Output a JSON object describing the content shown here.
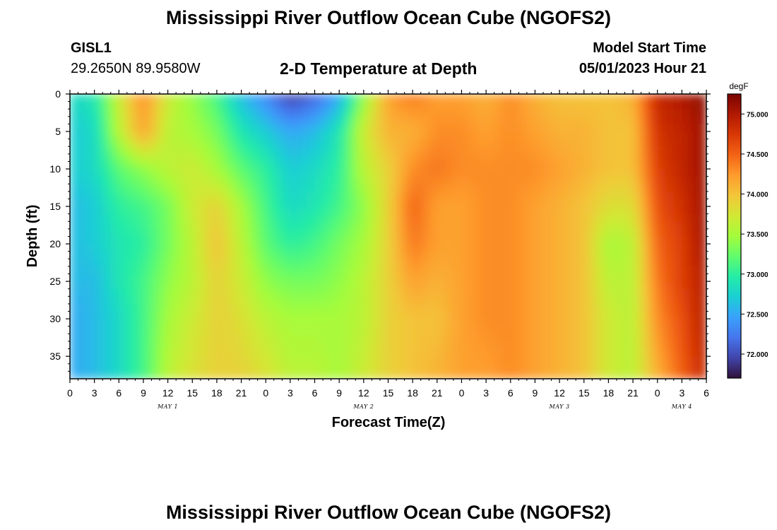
{
  "header": {
    "title_top": "Mississippi River Outflow Ocean Cube (NGOFS2)",
    "title_bottom": "Mississippi River Outflow Ocean Cube (NGOFS2)",
    "station_id": "GISL1",
    "station_coords": "29.2650N  89.9580W",
    "plot_subtitle": "2-D Temperature at Depth",
    "model_start_label": "Model Start Time",
    "model_start_value": "05/01/2023 Hour 21"
  },
  "chart_data": {
    "type": "heatmap",
    "title": "2-D Temperature at Depth",
    "xlabel": "Forecast Time(Z)",
    "ylabel": "Depth (ft)",
    "x_ticks": [
      "0",
      "3",
      "6",
      "9",
      "12",
      "15",
      "18",
      "21",
      "0",
      "3",
      "6",
      "9",
      "12",
      "15",
      "18",
      "21",
      "0",
      "3",
      "6",
      "9",
      "12",
      "15",
      "18",
      "21",
      "0",
      "3",
      "6"
    ],
    "x_range_hours": [
      0,
      78
    ],
    "day_labels": [
      {
        "label": "MAY 1",
        "hour": 12
      },
      {
        "label": "MAY 2",
        "hour": 36
      },
      {
        "label": "MAY 3",
        "hour": 60
      },
      {
        "label": "MAY 4",
        "hour": 75
      }
    ],
    "y_ticks": [
      "0",
      "5",
      "10",
      "15",
      "20",
      "25",
      "30",
      "35"
    ],
    "y_range_ft": [
      0,
      38
    ],
    "y_inverted": true,
    "colorbar": {
      "unit": "degF",
      "labels": [
        "75.000",
        "74.500",
        "74.000",
        "73.500",
        "73.000",
        "72.500",
        "72.000"
      ],
      "range": [
        71.7,
        75.25
      ],
      "colormap": [
        "#30123b",
        "#4145ab",
        "#4675ed",
        "#39a2fc",
        "#1bcfd4",
        "#24eca6",
        "#61fc6c",
        "#a4fc3b",
        "#d1e834",
        "#f3c63a",
        "#fe9b2d",
        "#f36315",
        "#d93806",
        "#b11901",
        "#7a0402"
      ]
    },
    "grid_hours": [
      0,
      3,
      6,
      9,
      12,
      15,
      18,
      21,
      24,
      27,
      30,
      33,
      36,
      39,
      42,
      45,
      48,
      51,
      54,
      57,
      60,
      63,
      66,
      69,
      72,
      75,
      78
    ],
    "grid_depths_ft": [
      0,
      5,
      10,
      15,
      20,
      25,
      30,
      38
    ],
    "values_degF": [
      [
        72.8,
        72.9,
        73.7,
        74.3,
        73.7,
        73.4,
        73.1,
        72.6,
        72.3,
        71.9,
        72.1,
        72.5,
        73.4,
        74.2,
        74.4,
        74.2,
        74.2,
        74.1,
        74.3,
        74.1,
        74.0,
        74.0,
        74.0,
        74.1,
        74.9,
        75.0,
        75.2
      ],
      [
        72.7,
        72.8,
        73.6,
        74.2,
        73.6,
        73.5,
        73.3,
        72.9,
        72.7,
        72.5,
        72.6,
        72.9,
        73.7,
        74.1,
        74.1,
        74.3,
        74.3,
        74.2,
        74.3,
        74.2,
        74.1,
        74.1,
        74.0,
        74.0,
        74.8,
        74.9,
        75.1
      ],
      [
        72.7,
        72.8,
        73.2,
        73.4,
        73.6,
        73.7,
        73.5,
        73.2,
        73.0,
        72.7,
        72.8,
        73.0,
        73.6,
        73.9,
        74.3,
        74.4,
        74.3,
        74.3,
        74.3,
        74.3,
        74.2,
        74.1,
        74.0,
        74.0,
        74.7,
        74.9,
        75.1
      ],
      [
        72.6,
        72.7,
        73.0,
        73.1,
        73.3,
        73.7,
        73.9,
        73.5,
        73.1,
        72.8,
        72.9,
        73.1,
        73.4,
        73.9,
        74.5,
        74.2,
        74.2,
        74.3,
        74.3,
        74.2,
        74.1,
        74.0,
        73.8,
        73.8,
        74.6,
        74.8,
        75.1
      ],
      [
        72.6,
        72.7,
        72.9,
        73.0,
        73.3,
        73.6,
        74.0,
        73.6,
        73.2,
        73.0,
        73.1,
        73.3,
        73.5,
        73.9,
        74.4,
        74.2,
        74.2,
        74.3,
        74.3,
        74.2,
        74.1,
        74.0,
        73.5,
        73.6,
        74.5,
        74.7,
        75.1
      ],
      [
        72.6,
        72.6,
        72.9,
        73.1,
        73.4,
        73.6,
        73.9,
        73.7,
        73.4,
        73.3,
        73.3,
        73.4,
        73.6,
        73.9,
        74.2,
        74.1,
        74.2,
        74.3,
        74.3,
        74.2,
        74.1,
        74.0,
        73.6,
        73.6,
        74.4,
        74.7,
        75.0
      ],
      [
        72.5,
        72.6,
        72.8,
        73.1,
        73.5,
        73.7,
        73.9,
        73.8,
        73.6,
        73.5,
        73.5,
        73.5,
        73.6,
        73.9,
        74.0,
        74.0,
        74.2,
        74.3,
        74.3,
        74.2,
        74.1,
        74.0,
        73.7,
        73.6,
        74.3,
        74.6,
        75.0
      ],
      [
        72.5,
        72.6,
        72.8,
        73.1,
        73.6,
        73.8,
        73.9,
        73.9,
        73.8,
        73.6,
        73.6,
        73.5,
        73.7,
        73.9,
        74.0,
        74.1,
        74.2,
        74.2,
        74.3,
        74.2,
        74.1,
        74.0,
        73.7,
        73.6,
        74.1,
        74.5,
        74.9
      ]
    ]
  }
}
